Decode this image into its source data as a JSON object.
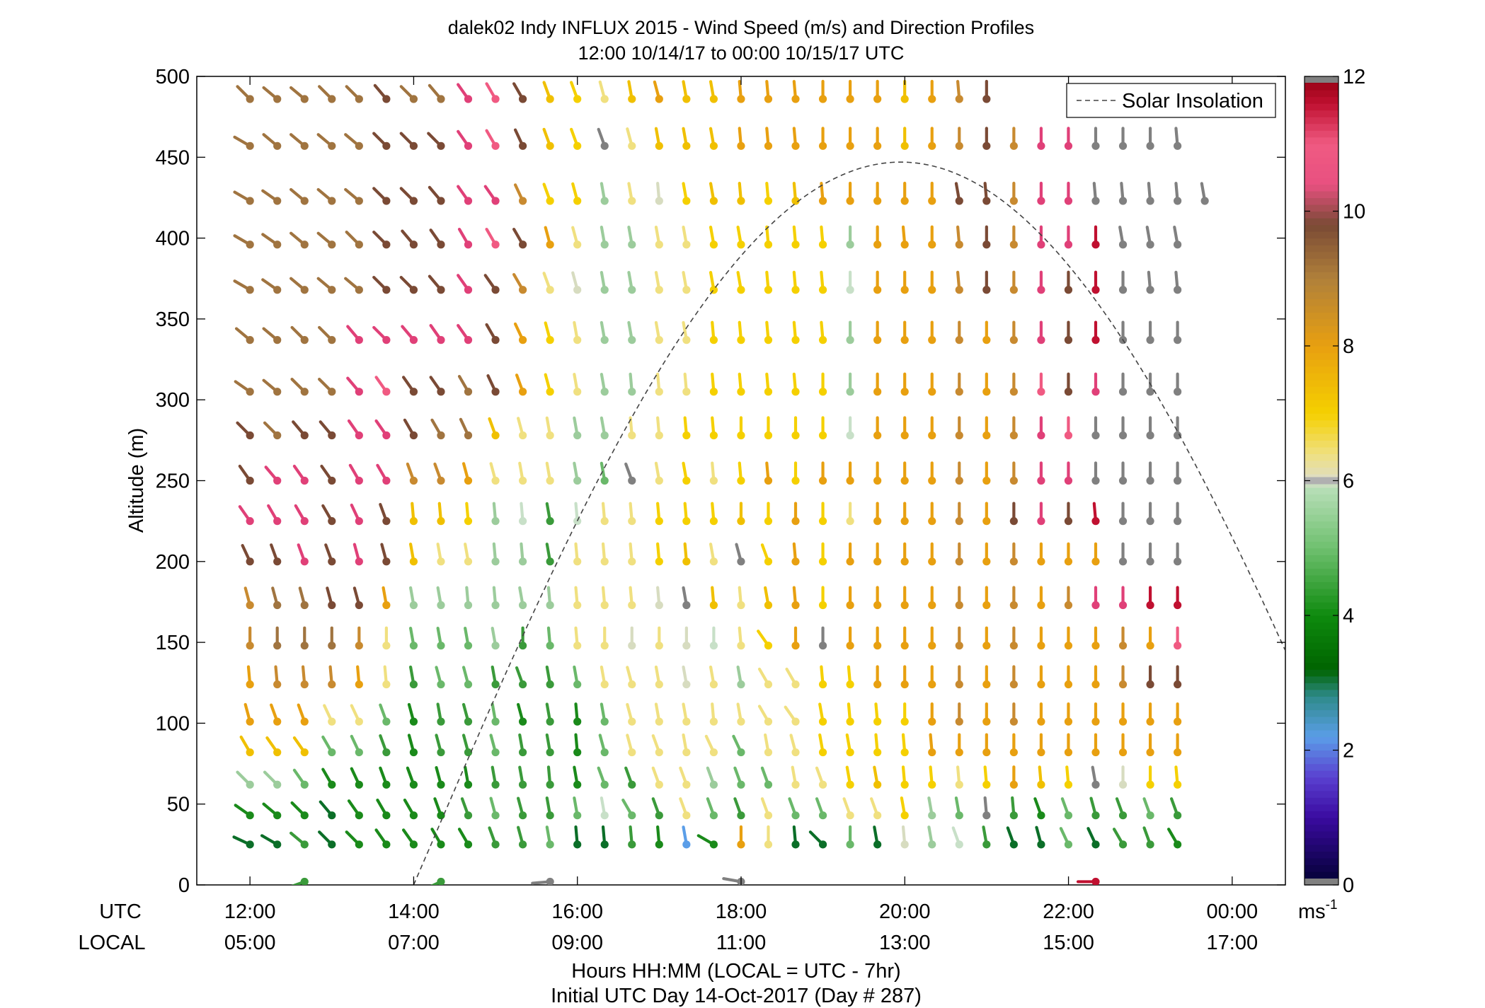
{
  "chart_data": {
    "type": "wind-barb-profile",
    "title": "dalek02 Indy INFLUX 2015 - Wind Speed (m/s) and Direction Profiles",
    "subtitle": "12:00 10/14/17 to 00:00 10/15/17  UTC",
    "ylabel": "Altitude (m)",
    "xlabel": "Hours HH:MM  (LOCAL = UTC - 7hr)",
    "xlabel2": "Initial UTC Day 14-Oct-2017 (Day # 287)",
    "row_label_utc": "UTC",
    "row_label_local": "LOCAL",
    "x_unit": "hours UTC since 12:00 10/14/17",
    "xlim": [
      -0.65,
      12.65
    ],
    "ylim": [
      0,
      500
    ],
    "grid": false,
    "x_ticks": [
      0,
      2,
      4,
      6,
      8,
      10,
      12
    ],
    "x_tick_labels_utc": [
      "12:00",
      "14:00",
      "16:00",
      "18:00",
      "20:00",
      "22:00",
      "00:00"
    ],
    "x_tick_labels_local": [
      "05:00",
      "07:00",
      "09:00",
      "11:00",
      "13:00",
      "15:00",
      "17:00"
    ],
    "y_ticks": [
      0,
      50,
      100,
      150,
      200,
      250,
      300,
      350,
      400,
      450,
      500
    ],
    "y_tick_labels": [
      "0",
      "50",
      "100",
      "150",
      "200",
      "250",
      "300",
      "350",
      "400",
      "450",
      "500"
    ],
    "legend": {
      "label": "Solar Insolation",
      "style": "dashed",
      "placement": "top-right"
    },
    "solar_insolation": {
      "peak_time_hours": 7.95,
      "peak_altitude": 447,
      "zero_crossing_hours": 2.0,
      "half_width_hours": 5.95
    },
    "colorbar": {
      "unit_label": "ms",
      "unit_exponent": "-1",
      "range": [
        0,
        12
      ],
      "tick_values": [
        0,
        2,
        4,
        6,
        8,
        10,
        12
      ],
      "tick_labels": [
        "0",
        "2",
        "4",
        "6",
        "8",
        "10",
        "12"
      ],
      "stops": [
        {
          "v": 0,
          "c": "#000030"
        },
        {
          "v": 1,
          "c": "#3a0aa0"
        },
        {
          "v": 1.6,
          "c": "#5a40d0"
        },
        {
          "v": 2.2,
          "c": "#5b9ee8"
        },
        {
          "v": 2.8,
          "c": "#2e8a8a"
        },
        {
          "v": 3.2,
          "c": "#006400"
        },
        {
          "v": 4,
          "c": "#0e8a0e"
        },
        {
          "v": 5,
          "c": "#6fc06f"
        },
        {
          "v": 5.9,
          "c": "#b8dfb8"
        },
        {
          "v": 6.0,
          "c": "#dcdcc8"
        },
        {
          "v": 6.4,
          "c": "#f0e080"
        },
        {
          "v": 7.0,
          "c": "#f5d000"
        },
        {
          "v": 8.0,
          "c": "#e8a010"
        },
        {
          "v": 9.0,
          "c": "#b0803a"
        },
        {
          "v": 9.8,
          "c": "#7a4a35"
        },
        {
          "v": 10.4,
          "c": "#e85080"
        },
        {
          "v": 11.0,
          "c": "#f05a82"
        },
        {
          "v": 11.6,
          "c": "#c01030"
        },
        {
          "v": 12,
          "c": "#900010"
        }
      ],
      "under_color": "#808080",
      "over_color": "#808080"
    },
    "altitudes": [
      2,
      25,
      43,
      62,
      82,
      101,
      124,
      148,
      173,
      200,
      225,
      250,
      278,
      305,
      337,
      368,
      396,
      423,
      457,
      486
    ],
    "time_step_hours": 0.3333,
    "time_start_hours": 0,
    "speed_colors": {
      "G": "#808080",
      "B": "#5b9ee8",
      "DG": "#0b6e28",
      "MG": "#1a8a1a",
      "G4": "#3a9a3a",
      "G5": "#6ab86a",
      "LG": "#9ccc9c",
      "PG": "#c8e0c8",
      "GC": "#d7dcc0",
      "PY": "#f0e080",
      "Y": "#f5d000",
      "GY": "#f0c000",
      "O": "#e8a010",
      "OB": "#c88a30",
      "BR": "#a07440",
      "DB": "#7a4a35",
      "P": "#e04078",
      "PK": "#f05a82",
      "R": "#c01030",
      "DR": "#900010"
    },
    "rows": [
      {
        "alt": 486,
        "cells": "BR:225,BR:230,BR:230,BR:225,BR:225,DB:220,BR:225,BR:220,P:215,PK:210,DB:210,GY:200,Y:200,PY:195,GY:190,O:195,GY:190,GY:190,O:185,O:185,O:185,O:180,O:180,O:180,GY:180,O:180,OB:185,DB:180"
      },
      {
        "alt": 457,
        "cells": "BR:240,BR:230,BR:230,BR:230,BR:230,DB:225,DB:225,DB:225,P:215,PK:210,DB:205,GY:200,Y:200,G:200,PY:195,GY:190,GY:190,GY:190,O:185,O:185,O:185,O:180,O:180,O:180,GY:180,O:180,OB:180,DB:180,OB:180,P:180,P:180,G:180,G:180,G:180,G:185"
      },
      {
        "alt": 423,
        "cells": "BR:240,BR:235,BR:230,BR:230,BR:230,DB:225,DB:225,DB:220,P:215,P:215,OB:205,Y:200,Y:195,LG:190,PY:190,GC:185,Y:190,GY:190,GY:185,Y:185,GY:185,O:185,O:180,O:180,O:180,O:180,DB:190,DB:185,OB:180,P:180,P:180,G:185,G:185,G:185,G:185,G:190"
      },
      {
        "alt": 396,
        "cells": "BR:240,BR:235,BR:230,BR:230,BR:225,DB:225,DB:220,DB:215,P:210,PK:210,DB:210,O:195,PY:195,LG:190,LG:190,PY:190,PY:190,Y:190,Y:190,Y:185,Y:185,Y:185,LG:180,O:180,O:185,O:180,OB:185,DB:180,OB:180,P:180,P:180,R:180,G:190,G:190,G:190"
      },
      {
        "alt": 368,
        "cells": "BR:240,BR:235,BR:230,BR:230,BR:230,DB:225,DB:225,DB:220,P:215,DB:215,OB:210,PY:200,GC:195,LG:190,LG:190,PY:190,PY:190,Y:190,Y:190,Y:185,Y:185,Y:185,PG:180,O:180,O:180,O:180,OB:185,DB:180,OB:180,P:180,DB:180,R:180,G:180,G:185,G:185"
      },
      {
        "alt": 337,
        "cells": "BR:230,BR:230,BR:225,BR:225,P:220,P:225,P:220,P:215,P:215,DB:210,O:205,Y:195,PY:190,LG:190,LG:190,PY:190,PY:190,Y:185,Y:185,Y:185,Y:185,Y:185,LG:180,O:180,O:180,O:180,OB:180,O:180,OB:180,P:180,DB:180,R:180,G:180,G:180,G:180"
      },
      {
        "alt": 305,
        "cells": "BR:235,BR:230,BR:225,BR:225,P:220,PK:215,DB:215,DB:215,BR:210,DB:205,O:200,Y:195,PY:190,LG:190,LG:185,PY:185,PY:185,Y:185,Y:185,Y:185,Y:185,Y:180,LG:180,O:180,O:180,O:180,OB:180,O:180,OB:180,PK:180,DB:180,P:180,G:180,G:180,G:180"
      },
      {
        "alt": 278,
        "cells": "DB:225,BR:225,DB:220,DB:220,P:215,P:215,DB:210,BR:210,BR:205,GY:200,PY:195,PY:190,LG:190,LG:190,PY:185,PY:185,Y:185,Y:185,Y:180,Y:180,Y:180,Y:180,PG:180,O:180,O:180,O:180,OB:180,O:180,OB:180,P:180,PK:180,G:180,G:180,G:180,G:180"
      },
      {
        "alt": 250,
        "cells": "DB:215,P:220,P:215,DB:215,P:210,P:210,OB:200,OB:200,O:195,PY:195,PY:190,PY:190,LG:190,G5:190,G:200,PY:190,Y:190,PY:185,Y:185,O:185,Y:180,O:180,O:180,O:180,O:180,O:180,OB:180,O:180,OB:180,P:180,P:180,G:180,G:180,G:180,G:180"
      },
      {
        "alt": 225,
        "cells": "P:215,P:210,P:210,DB:210,P:205,DB:200,GY:185,GY:185,Y:185,LG:185,PG:185,G4:190,PG:185,PY:185,PY:185,Y:185,Y:185,Y:185,GY:180,Y:180,O:180,Y:180,PY:180,O:180,O:180,O:180,OB:180,O:180,DB:180,P:180,DB:180,R:185,G:180,G:180,G:180"
      },
      {
        "alt": 200,
        "cells": "DB:205,DB:200,P:200,DB:200,P:195,DB:195,GY:190,PY:190,PY:190,LG:185,LG:185,G4:190,PY:185,PY:185,PY:185,Y:185,GY:185,PY:190,G:195,Y:200,O:185,Y:180,O:180,O:180,O:180,O:180,OB:180,O:180,OB:180,O:180,O:180,O:180,G:180,G:180,G:180"
      },
      {
        "alt": 173,
        "cells": "OB:195,BR:195,BR:195,DB:195,DB:195,O:190,LG:190,LG:190,LG:185,LG:185,LG:190,LG:185,PY:185,PY:185,PY:185,GC:185,G:190,GY:185,PY:185,GY:190,O:185,Y:180,O:180,O:180,O:180,O:180,OB:180,O:180,OB:180,O:180,OB:180,P:180,P:180,R:180,R:180"
      },
      {
        "alt": 148,
        "cells": "OB:180,BR:180,BR:180,BR:180,OB:180,PY:180,G5:190,G5:190,G5:190,LG:190,G4:180,G5:185,PY:185,PY:180,GC:180,PY:180,GC:180,PG:180,PY:185,Y:215,O:180,G:180,O:180,O:180,O:180,O:180,OB:180,O:180,OB:180,O:180,O:180,O:180,OB:180,O:180,PK:180"
      },
      {
        "alt": 124,
        "cells": "O:185,OB:185,OB:185,OB:185,O:185,PY:185,G4:190,G5:195,G5:195,G4:190,G4:200,G4:190,G5:190,PY:190,PY:195,PY:190,GC:190,PY:190,LG:190,PY:210,PY:210,Y:185,Y:185,O:180,O:180,O:180,OB:180,O:180,OB:180,O:180,O:180,O:180,OB:180,DB:180,DB:180"
      },
      {
        "alt": 101,
        "cells": "O:195,O:200,O:200,PY:205,PY:205,G5:200,MG:195,G4:190,G4:195,G5:190,MG:195,G4:190,MG:185,G5:190,PY:195,PY:190,PY:190,PY:185,PY:190,PY:210,PY:215,Y:190,Y:185,Y:185,Y:180,O:180,OB:180,O:180,OB:180,O:180,O:180,O:180,O:180,O:180,O:180"
      },
      {
        "alt": 82,
        "cells": "GY:210,GY:215,GY:215,G5:210,G5:205,G4:200,MG:195,G4:195,G4:195,G5:195,G4:190,G4:190,MG:185,G5:195,PY:195,PY:200,PY:190,PY:205,G5:205,PY:190,PY:195,Y:190,Y:190,Y:185,Y:185,O:185,O:180,O:180,O:180,O:180,O:180,O:180,O:180,O:180,O:180"
      },
      {
        "alt": 62,
        "cells": "LG:225,LG:225,G5:215,MG:210,MG:205,MG:200,MG:200,MG:195,MG:190,G4:190,G4:190,G4:185,MG:190,G5:200,G4:200,PY:200,PY:200,LG:200,G5:200,G5:200,PY:190,PY:200,Y:190,GY:190,Y:185,Y:185,PY:185,Y:185,O:180,GY:185,Y:185,G:190,GC:180,Y:180,Y:185"
      },
      {
        "alt": 43,
        "cells": "MG:235,MG:230,MG:225,DG:220,MG:215,MG:210,MG:210,MG:200,G4:200,G5:195,G4:195,G4:190,G5:190,PG:190,G5:210,G4:200,PY:200,G5:200,G4:200,PY:200,G5:200,G5:200,PY:200,PY:200,Y:190,LG:190,G5:190,G:185,G4:185,MG:200,G5:200,G4:195,G4:200,G5:200,G4:200"
      },
      {
        "alt": 25,
        "cells": "DG:245,DG:240,G4:230,DG:225,MG:225,MG:215,MG:215,MG:210,MG:210,G4:200,G4:195,G5:190,DG:185,DG:185,G4:185,MG:185,B:190,MG:240,O:180,PY:180,DG:185,DG:225,G5:180,DG:190,GC:185,LG:190,PG:200,G4:190,DG:200,DG:195,G5:205,DG:205,G4:210,G4:200,MG:210"
      },
      {
        "alt": 2,
        "cells": "_,_,G4:290,_,_,_,_,G4:295,_,_,_,G:275,_,_,_,_,_,_,G:260,_,_,_,_,_,_,_,_,_,_,_,_,R:270,_,_,_"
      }
    ]
  }
}
